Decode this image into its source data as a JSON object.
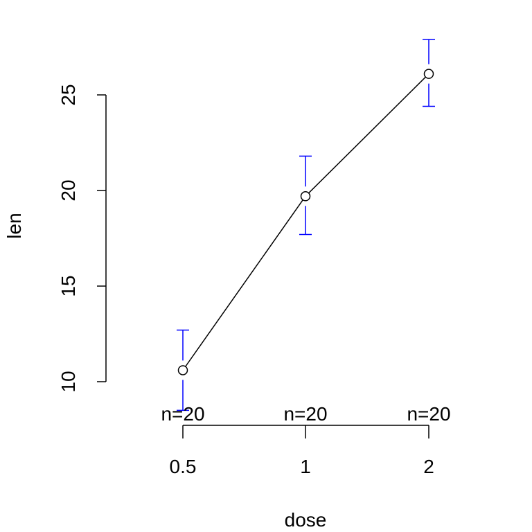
{
  "chart_data": {
    "type": "line",
    "xlabel": "dose",
    "ylabel": "len",
    "categories": [
      "0.5",
      "1",
      "2"
    ],
    "series": [
      {
        "values": [
          10.6,
          19.7,
          26.1
        ],
        "ci_lower": [
          8.5,
          17.7,
          24.4
        ],
        "ci_upper": [
          12.7,
          21.8,
          27.9
        ],
        "color": "#000000",
        "error_bar_color": "#0000ff"
      }
    ],
    "counts": [
      "n=20",
      "n=20",
      "n=20"
    ],
    "yticks": [
      10,
      15,
      20,
      25
    ],
    "ylim": [
      10,
      25
    ],
    "grid": false
  }
}
